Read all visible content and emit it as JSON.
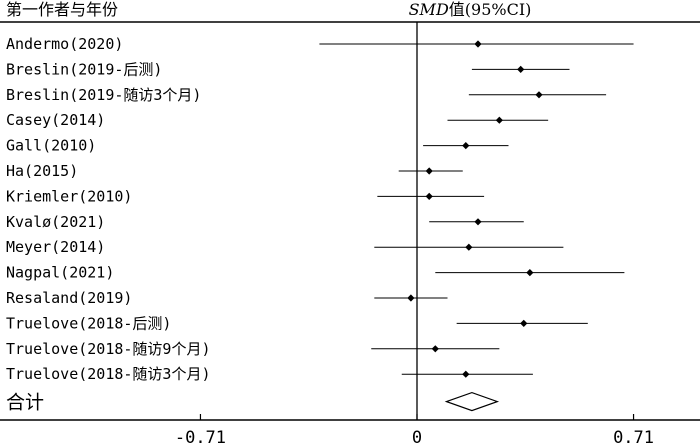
{
  "chart_data": {
    "type": "forest",
    "header_study": "第一作者与年份",
    "header_effect_prefix": "SMD",
    "header_effect_suffix": "值(95%CI)",
    "xlim": [
      -1.0,
      0.9
    ],
    "xticks": [
      {
        "value": -0.71,
        "label": "-0.71"
      },
      {
        "value": 0,
        "label": "0"
      },
      {
        "value": 0.71,
        "label": "0.71"
      }
    ],
    "studies": [
      {
        "label": "Andermo(2020)",
        "smd": 0.2,
        "lo": -0.32,
        "hi": 0.71
      },
      {
        "label": "Breslin(2019-后测)",
        "smd": 0.34,
        "lo": 0.18,
        "hi": 0.5
      },
      {
        "label": "Breslin(2019-随访3个月)",
        "smd": 0.4,
        "lo": 0.17,
        "hi": 0.62
      },
      {
        "label": "Casey(2014)",
        "smd": 0.27,
        "lo": 0.1,
        "hi": 0.43
      },
      {
        "label": "Gall(2010)",
        "smd": 0.16,
        "lo": 0.02,
        "hi": 0.3
      },
      {
        "label": "Ha(2015)",
        "smd": 0.04,
        "lo": -0.06,
        "hi": 0.15
      },
      {
        "label": "Kriemler(2010)",
        "smd": 0.04,
        "lo": -0.13,
        "hi": 0.22
      },
      {
        "label": "Kvalø(2021)",
        "smd": 0.2,
        "lo": 0.04,
        "hi": 0.35
      },
      {
        "label": "Meyer(2014)",
        "smd": 0.17,
        "lo": -0.14,
        "hi": 0.48
      },
      {
        "label": "Nagpal(2021)",
        "smd": 0.37,
        "lo": 0.06,
        "hi": 0.68
      },
      {
        "label": "Resaland(2019)",
        "smd": -0.02,
        "lo": -0.14,
        "hi": 0.1
      },
      {
        "label": "Truelove(2018-后测)",
        "smd": 0.35,
        "lo": 0.13,
        "hi": 0.56
      },
      {
        "label": "Truelove(2018-随访9个月)",
        "smd": 0.06,
        "lo": -0.15,
        "hi": 0.27
      },
      {
        "label": "Truelove(2018-随访3个月)",
        "smd": 0.16,
        "lo": -0.05,
        "hi": 0.38
      }
    ],
    "pooled": {
      "label": "合计",
      "smd": 0.18,
      "lo": 0.1,
      "hi": 0.26
    }
  }
}
